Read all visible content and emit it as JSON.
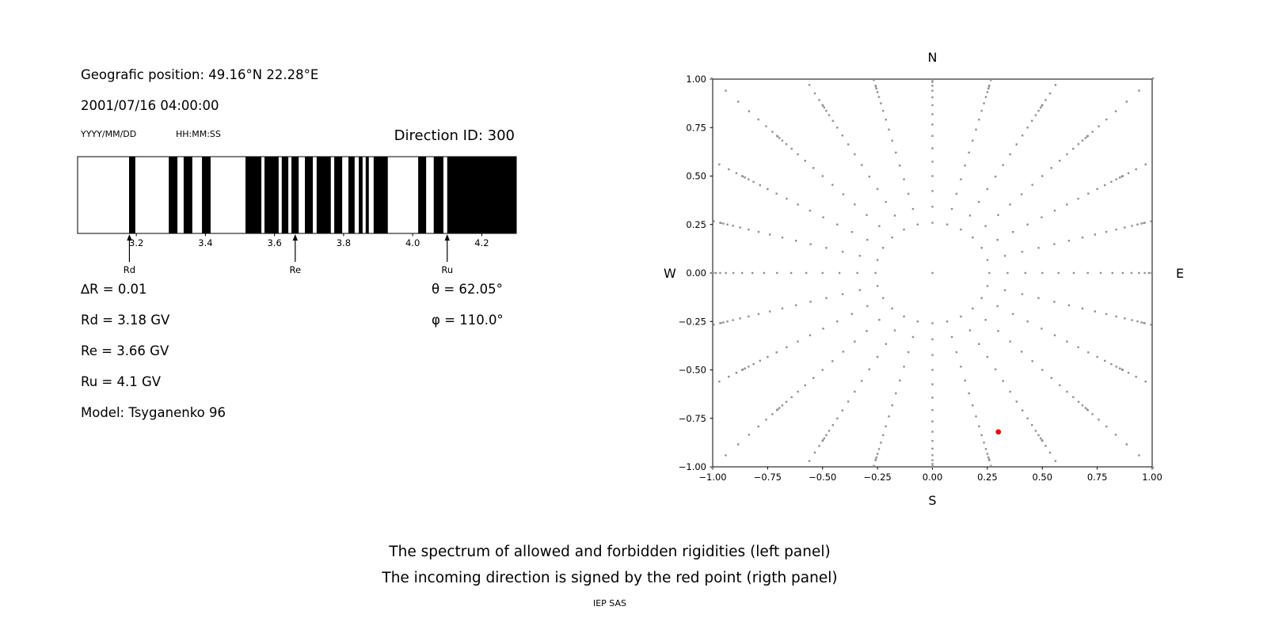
{
  "meta": {
    "colors": {
      "band": "#000000",
      "frame": "#000000",
      "grid_dot": "#909090",
      "red_point": "#ff0000",
      "text": "#000000",
      "background": "#ffffff"
    }
  },
  "left_panel": {
    "geo_position": "Geografic position: 49.16°N 22.28°E",
    "datetime": "2001/07/16 04:00:00",
    "date_format": "YYYY/MM/DD",
    "time_format": "HH:MM:SS",
    "direction_id": "Direction ID: 300",
    "info": {
      "delta_r": "∆R = 0.01",
      "rd": "Rd = 3.18 GV",
      "re": "Re = 3.66 GV",
      "ru": "Ru = 4.1 GV",
      "model": "Model: Tsyganenko 96",
      "theta": "θ = 62.05°",
      "phi": "φ = 110.0°"
    }
  },
  "caption": {
    "line1": "The spectrum of allowed and forbidden rigidities (left panel)",
    "line2": "The incoming direction is signed by the red point (rigth panel)",
    "credit": "IEP SAS"
  },
  "chart_data": [
    {
      "id": "rigidity-spectrum",
      "type": "bar",
      "subtype": "broken-bands",
      "description": "Spectrum of allowed (black) and forbidden (white) rigidities",
      "x_range": [
        3.03,
        4.3
      ],
      "x_ticks": [
        3.2,
        3.4,
        3.6,
        3.8,
        4.0,
        4.2
      ],
      "allowed_bands_gv": [
        [
          3.179,
          3.197
        ],
        [
          3.294,
          3.319
        ],
        [
          3.337,
          3.362
        ],
        [
          3.39,
          3.415
        ],
        [
          3.516,
          3.562
        ],
        [
          3.571,
          3.612
        ],
        [
          3.621,
          3.64
        ],
        [
          3.649,
          3.67
        ],
        [
          3.688,
          3.711
        ],
        [
          3.722,
          3.763
        ],
        [
          3.773,
          3.796
        ],
        [
          3.814,
          3.832
        ],
        [
          3.844,
          3.855
        ],
        [
          3.864,
          3.873
        ],
        [
          3.887,
          3.928
        ],
        [
          4.016,
          4.039
        ],
        [
          4.061,
          4.089
        ],
        [
          4.1,
          4.3
        ]
      ],
      "markers": [
        {
          "label": "Rd",
          "value": 3.18
        },
        {
          "label": "Re",
          "value": 3.66
        },
        {
          "label": "Ru",
          "value": 4.1
        }
      ]
    },
    {
      "id": "direction-map",
      "type": "scatter",
      "description": "Grid of viewing directions; incoming direction marked by red point",
      "x_range": [
        -1,
        1
      ],
      "y_range": [
        -1,
        1
      ],
      "x_ticks": [
        -1,
        -0.75,
        -0.5,
        -0.25,
        0,
        0.25,
        0.5,
        0.75,
        1
      ],
      "y_ticks": [
        -1,
        -0.75,
        -0.5,
        -0.25,
        0,
        0.25,
        0.5,
        0.75,
        1
      ],
      "compass_labels": {
        "top": "N",
        "bottom": "S",
        "left": "W",
        "right": "E"
      },
      "grid_dots": {
        "center_dot": true,
        "azimuth_start_deg": 0,
        "azimuth_step_deg": 15,
        "azimuth_count": 24,
        "radii": [
          0.259,
          0.342,
          0.423,
          0.5,
          0.574,
          0.643,
          0.707,
          0.766,
          0.819,
          0.866,
          0.906,
          0.94,
          0.966,
          0.985,
          0.996,
          1.0,
          1.03,
          1.07,
          1.12,
          1.18,
          1.25,
          1.33,
          1.42
        ],
        "clip": 1.01
      },
      "red_point": {
        "x": 0.3,
        "y": -0.82
      }
    }
  ]
}
